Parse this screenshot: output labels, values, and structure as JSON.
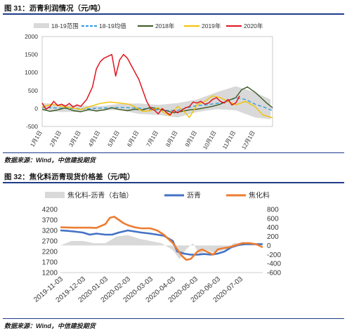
{
  "figure1": {
    "title": "图 31：沥青利润情况（元/吨）",
    "source": "数据来源：Wind，中信建投期货"
  },
  "figure2": {
    "title": "图 32：焦化料沥青现货价格差（元/吨）",
    "source": "数据来源：Wind，中信建投期货"
  },
  "colors": {
    "rule": "#1f3c88",
    "range": "#d9d9d9",
    "mean": "#2f9de0",
    "y2018": "#3a5a22",
    "y2019": "#f2c200",
    "y2020": "#e0141c",
    "asphalt": "#4472c4",
    "coking": "#ed7d31",
    "spread": "#d9d9d9"
  },
  "chart_data": [
    {
      "type": "line",
      "title": "",
      "x_categories": [
        "1月1日",
        "2月1日",
        "3月1日",
        "4月1日",
        "5月1日",
        "6月1日",
        "7月1日",
        "8月1日",
        "9月1日",
        "10月1日",
        "11月1日",
        "12月1日"
      ],
      "ylim": [
        -500,
        2000
      ],
      "yticks": [
        -500,
        0,
        500,
        1000,
        1500,
        2000
      ],
      "legend": {
        "placement": "top",
        "entries": [
          "18-19范围",
          "18-19均值",
          "2018年",
          "2019年",
          "2020年"
        ]
      },
      "range_18_19": {
        "x": [
          1,
          2,
          3,
          4,
          5,
          6,
          7,
          8,
          9,
          10,
          11,
          12,
          12.8
        ],
        "upper": [
          150,
          120,
          80,
          60,
          130,
          140,
          100,
          150,
          250,
          450,
          620,
          450,
          250
        ],
        "lower": [
          -60,
          -100,
          -90,
          -60,
          -40,
          -150,
          -180,
          -250,
          -100,
          -20,
          -50,
          -250,
          -300
        ]
      },
      "series": [
        {
          "name": "18-19均值",
          "x": [
            1,
            1.5,
            2,
            2.5,
            3,
            3.5,
            4,
            4.5,
            5,
            5.5,
            6,
            6.5,
            7,
            7.5,
            8,
            8.5,
            9,
            9.5,
            10,
            10.5,
            11,
            11.5,
            12,
            12.5,
            12.9
          ],
          "values": [
            30,
            20,
            10,
            0,
            -10,
            -5,
            10,
            20,
            30,
            20,
            10,
            -20,
            -40,
            -60,
            -50,
            20,
            80,
            100,
            140,
            180,
            300,
            250,
            120,
            30,
            -60
          ]
        },
        {
          "name": "2018年",
          "x": [
            1,
            1.4,
            1.8,
            2.2,
            2.6,
            3,
            3.4,
            3.8,
            4.2,
            4.6,
            5,
            5.4,
            5.8,
            6.2,
            6.6,
            7,
            7.4,
            7.8,
            8.2,
            8.6,
            9,
            9.4,
            9.8,
            10.2,
            10.6,
            11,
            11.3,
            11.6,
            12,
            12.3,
            12.6,
            12.9
          ],
          "values": [
            -20,
            -80,
            -40,
            20,
            -60,
            -90,
            -30,
            -70,
            -40,
            20,
            -30,
            -60,
            -20,
            -40,
            30,
            -10,
            -60,
            -120,
            -80,
            -40,
            -20,
            20,
            60,
            120,
            220,
            300,
            520,
            600,
            450,
            300,
            150,
            20
          ]
        },
        {
          "name": "2019年",
          "x": [
            1,
            1.5,
            2,
            2.5,
            3,
            3.5,
            4,
            4.5,
            5,
            5.5,
            5.8,
            6.2,
            6.6,
            7,
            7.3,
            7.6,
            8,
            8.3,
            8.6,
            9,
            9.4,
            9.8,
            10.2,
            10.6,
            11,
            11.5,
            12,
            12.4,
            12.9
          ],
          "values": [
            40,
            120,
            60,
            20,
            -30,
            60,
            140,
            180,
            150,
            120,
            40,
            -80,
            -60,
            20,
            -120,
            -200,
            60,
            -60,
            -250,
            100,
            200,
            350,
            300,
            200,
            100,
            200,
            50,
            -180,
            -260
          ]
        },
        {
          "name": "2020年",
          "x": [
            1,
            1.2,
            1.4,
            1.6,
            1.8,
            2,
            2.2,
            2.4,
            2.6,
            2.8,
            3,
            3.3,
            3.6,
            3.8,
            4,
            4.2,
            4.4,
            4.6,
            4.8,
            5,
            5.2,
            5.4,
            5.6,
            5.8,
            6,
            6.2,
            6.4,
            6.6,
            6.8,
            7,
            7.2,
            7.4,
            7.6,
            7.8,
            8,
            8.2,
            8.4,
            8.6,
            8.8,
            9,
            9.2,
            9.4,
            9.6,
            9.8,
            10,
            10.2,
            10.4,
            10.6,
            10.8,
            11,
            11.2
          ],
          "values": [
            150,
            -20,
            50,
            200,
            80,
            120,
            60,
            140,
            40,
            100,
            60,
            250,
            600,
            1100,
            1300,
            1400,
            1450,
            1500,
            900,
            1350,
            1500,
            1400,
            1200,
            1000,
            800,
            500,
            200,
            0,
            -50,
            -150,
            0,
            -100,
            -180,
            -50,
            -120,
            -50,
            20,
            50,
            180,
            150,
            200,
            120,
            150,
            250,
            300,
            200,
            150,
            250,
            100,
            150,
            350
          ]
        }
      ]
    },
    {
      "type": "line",
      "title": "",
      "x_ticks": [
        "2019-11-03",
        "2019-12-03",
        "2020-01-03",
        "2020-02-03",
        "2020-03-03",
        "2020-04-03",
        "2020-05-03",
        "2020-06-03",
        "2020-07-03"
      ],
      "ylim": [
        1200,
        4200
      ],
      "yticks": [
        1200,
        1700,
        2200,
        2700,
        3200,
        3700,
        4200
      ],
      "y2lim": [
        -600,
        800
      ],
      "y2ticks": [
        -600,
        -400,
        -200,
        0,
        200,
        400,
        600,
        800
      ],
      "legend": {
        "placement": "top",
        "entries": [
          "焦化料-沥青（右轴）",
          "沥青",
          "焦化料"
        ]
      },
      "series": [
        {
          "name": "焦化料-沥青（右轴）",
          "axis": "right",
          "type": "area",
          "x": [
            0,
            0.5,
            1,
            1.5,
            2,
            2.5,
            3,
            3.5,
            4,
            4.5,
            5,
            5.3,
            5.6,
            5.9,
            6.2,
            6.5,
            6.8,
            7.1,
            7.4,
            7.7,
            8,
            8.5,
            9
          ],
          "values": [
            0,
            100,
            100,
            50,
            50,
            200,
            230,
            150,
            100,
            50,
            -100,
            -300,
            -80,
            50,
            -200,
            -100,
            -150,
            -120,
            -80,
            50,
            50,
            30,
            20
          ]
        },
        {
          "name": "沥青",
          "axis": "left",
          "x": [
            0,
            0.3,
            0.6,
            1,
            1.3,
            1.6,
            2,
            2.3,
            2.6,
            3,
            3.3,
            3.6,
            4,
            4.3,
            4.6,
            5,
            5.2,
            5.5,
            5.8,
            6.1,
            6.4,
            6.7,
            7,
            7.3,
            7.6,
            7.9,
            8.2,
            8.5,
            8.8,
            9
          ],
          "values": [
            3200,
            3180,
            3150,
            3100,
            3000,
            3050,
            3000,
            3000,
            3100,
            3200,
            3150,
            3100,
            3050,
            3000,
            2950,
            2700,
            2200,
            2100,
            2050,
            2050,
            2080,
            2050,
            2100,
            2200,
            2400,
            2500,
            2550,
            2550,
            2550,
            2550
          ]
        },
        {
          "name": "焦化料",
          "axis": "left",
          "x": [
            0,
            0.3,
            0.6,
            1,
            1.3,
            1.6,
            2,
            2.2,
            2.4,
            2.6,
            2.8,
            3,
            3.3,
            3.6,
            4,
            4.3,
            4.6,
            5,
            5.2,
            5.4,
            5.6,
            5.8,
            6.1,
            6.3,
            6.5,
            6.8,
            7,
            7.2,
            7.5,
            7.8,
            8.1,
            8.4,
            8.7,
            9
          ],
          "values": [
            3350,
            3340,
            3330,
            3330,
            3330,
            3320,
            3500,
            3800,
            3850,
            3700,
            3550,
            3450,
            3350,
            3300,
            3300,
            3200,
            3000,
            2600,
            2300,
            2000,
            1800,
            1850,
            2200,
            2300,
            2200,
            2050,
            2300,
            2350,
            2400,
            2500,
            2600,
            2600,
            2550,
            2400
          ]
        }
      ]
    }
  ]
}
